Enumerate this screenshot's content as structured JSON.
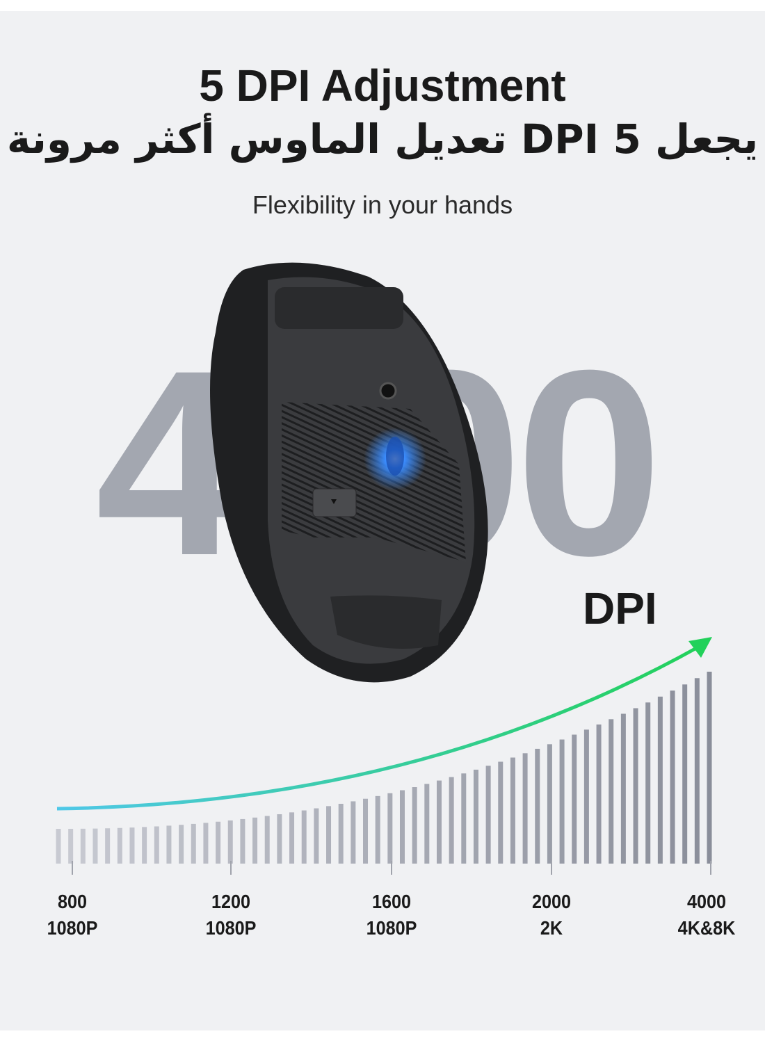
{
  "header": {
    "title": "5 DPI Adjustment",
    "title_ar": "يجعل 5 DPI تعديل الماوس أكثر مرونة",
    "subtitle": "Flexibility in your hands"
  },
  "hero": {
    "big_number": "4000",
    "unit": "DPI",
    "product": "wireless-mouse-underside"
  },
  "colors": {
    "background": "#f0f1f3",
    "arrow_start": "#4fc8e8",
    "arrow_end": "#22d15a",
    "bars_light": "#c3c5cd",
    "bars_dark": "#8a8d98",
    "sensor_glow": "#3a8cff"
  },
  "scale": {
    "levels": [
      {
        "dpi": "800",
        "resolution": "1080P"
      },
      {
        "dpi": "1200",
        "resolution": "1080P"
      },
      {
        "dpi": "1600",
        "resolution": "1080P"
      },
      {
        "dpi": "2000",
        "resolution": "2K"
      },
      {
        "dpi": "4000",
        "resolution": "4K&8K"
      }
    ]
  }
}
